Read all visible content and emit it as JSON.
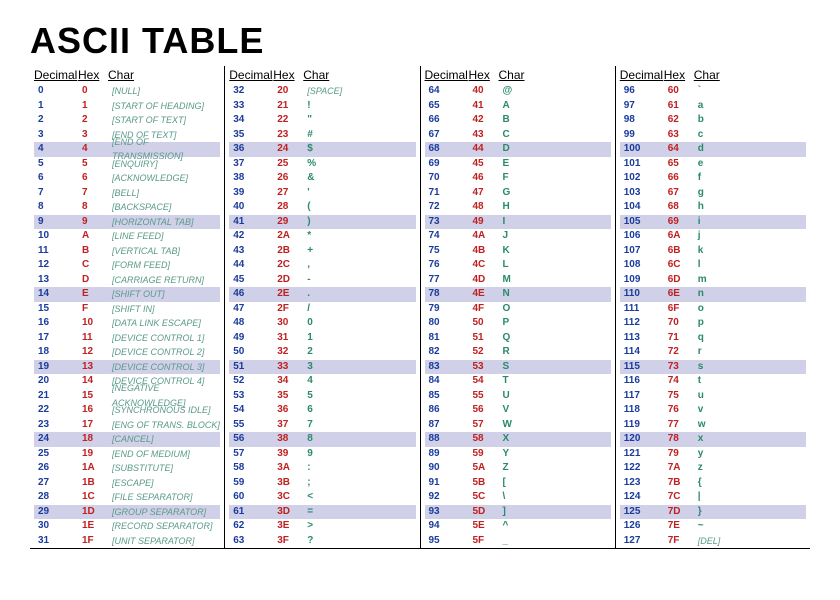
{
  "title": "ASCII TABLE",
  "headers": {
    "decimal": "Decimal",
    "hex": "Hex",
    "char": "Char"
  },
  "colors": {
    "decimal": "#1a3c9c",
    "hex": "#c02020",
    "char": "#2a8a6a",
    "ctrl": "#5a9a8a",
    "stripe": "#d0d0e8",
    "background": "#ffffff",
    "title": "#000000"
  },
  "typography": {
    "title_fontsize": 36,
    "title_weight": 900,
    "header_fontsize": 12,
    "row_fontsize": 10,
    "ctrl_fontsize": 9
  },
  "stripe_rows": [
    4,
    9,
    14,
    19,
    24,
    29
  ],
  "columns": [
    [
      {
        "d": "0",
        "h": "0",
        "c": "[NULL]",
        "ctrl": true
      },
      {
        "d": "1",
        "h": "1",
        "c": "[START OF HEADING]",
        "ctrl": true
      },
      {
        "d": "2",
        "h": "2",
        "c": "[START OF TEXT]",
        "ctrl": true
      },
      {
        "d": "3",
        "h": "3",
        "c": "[END OF TEXT]",
        "ctrl": true
      },
      {
        "d": "4",
        "h": "4",
        "c": "[END OF TRANSMISSION]",
        "ctrl": true
      },
      {
        "d": "5",
        "h": "5",
        "c": "[ENQUIRY]",
        "ctrl": true
      },
      {
        "d": "6",
        "h": "6",
        "c": "[ACKNOWLEDGE]",
        "ctrl": true
      },
      {
        "d": "7",
        "h": "7",
        "c": "[BELL]",
        "ctrl": true
      },
      {
        "d": "8",
        "h": "8",
        "c": "[BACKSPACE]",
        "ctrl": true
      },
      {
        "d": "9",
        "h": "9",
        "c": "[HORIZONTAL TAB]",
        "ctrl": true
      },
      {
        "d": "10",
        "h": "A",
        "c": "[LINE FEED]",
        "ctrl": true
      },
      {
        "d": "11",
        "h": "B",
        "c": "[VERTICAL TAB]",
        "ctrl": true
      },
      {
        "d": "12",
        "h": "C",
        "c": "[FORM FEED]",
        "ctrl": true
      },
      {
        "d": "13",
        "h": "D",
        "c": "[CARRIAGE RETURN]",
        "ctrl": true
      },
      {
        "d": "14",
        "h": "E",
        "c": "[SHIFT OUT]",
        "ctrl": true
      },
      {
        "d": "15",
        "h": "F",
        "c": "[SHIFT IN]",
        "ctrl": true
      },
      {
        "d": "16",
        "h": "10",
        "c": "[DATA LINK ESCAPE]",
        "ctrl": true
      },
      {
        "d": "17",
        "h": "11",
        "c": "[DEVICE CONTROL 1]",
        "ctrl": true
      },
      {
        "d": "18",
        "h": "12",
        "c": "[DEVICE CONTROL 2]",
        "ctrl": true
      },
      {
        "d": "19",
        "h": "13",
        "c": "[DEVICE CONTROL 3]",
        "ctrl": true
      },
      {
        "d": "20",
        "h": "14",
        "c": "[DEVICE CONTROL 4]",
        "ctrl": true
      },
      {
        "d": "21",
        "h": "15",
        "c": "[NEGATIVE ACKNOWLEDGE]",
        "ctrl": true
      },
      {
        "d": "22",
        "h": "16",
        "c": "[SYNCHRONOUS IDLE]",
        "ctrl": true
      },
      {
        "d": "23",
        "h": "17",
        "c": "[ENG OF TRANS. BLOCK]",
        "ctrl": true
      },
      {
        "d": "24",
        "h": "18",
        "c": "[CANCEL]",
        "ctrl": true
      },
      {
        "d": "25",
        "h": "19",
        "c": "[END OF MEDIUM]",
        "ctrl": true
      },
      {
        "d": "26",
        "h": "1A",
        "c": "[SUBSTITUTE]",
        "ctrl": true
      },
      {
        "d": "27",
        "h": "1B",
        "c": "[ESCAPE]",
        "ctrl": true
      },
      {
        "d": "28",
        "h": "1C",
        "c": "[FILE SEPARATOR]",
        "ctrl": true
      },
      {
        "d": "29",
        "h": "1D",
        "c": "[GROUP SEPARATOR]",
        "ctrl": true
      },
      {
        "d": "30",
        "h": "1E",
        "c": "[RECORD SEPARATOR]",
        "ctrl": true
      },
      {
        "d": "31",
        "h": "1F",
        "c": "[UNIT SEPARATOR]",
        "ctrl": true
      }
    ],
    [
      {
        "d": "32",
        "h": "20",
        "c": "[SPACE]",
        "ctrl": true
      },
      {
        "d": "33",
        "h": "21",
        "c": "!",
        "ctrl": false
      },
      {
        "d": "34",
        "h": "22",
        "c": "\"",
        "ctrl": false
      },
      {
        "d": "35",
        "h": "23",
        "c": "#",
        "ctrl": false
      },
      {
        "d": "36",
        "h": "24",
        "c": "$",
        "ctrl": false
      },
      {
        "d": "37",
        "h": "25",
        "c": "%",
        "ctrl": false
      },
      {
        "d": "38",
        "h": "26",
        "c": "&",
        "ctrl": false
      },
      {
        "d": "39",
        "h": "27",
        "c": "'",
        "ctrl": false
      },
      {
        "d": "40",
        "h": "28",
        "c": "(",
        "ctrl": false
      },
      {
        "d": "41",
        "h": "29",
        "c": ")",
        "ctrl": false
      },
      {
        "d": "42",
        "h": "2A",
        "c": "*",
        "ctrl": false
      },
      {
        "d": "43",
        "h": "2B",
        "c": "+",
        "ctrl": false
      },
      {
        "d": "44",
        "h": "2C",
        "c": ",",
        "ctrl": false
      },
      {
        "d": "45",
        "h": "2D",
        "c": "-",
        "ctrl": false
      },
      {
        "d": "46",
        "h": "2E",
        "c": ".",
        "ctrl": false
      },
      {
        "d": "47",
        "h": "2F",
        "c": "/",
        "ctrl": false
      },
      {
        "d": "48",
        "h": "30",
        "c": "0",
        "ctrl": false
      },
      {
        "d": "49",
        "h": "31",
        "c": "1",
        "ctrl": false
      },
      {
        "d": "50",
        "h": "32",
        "c": "2",
        "ctrl": false
      },
      {
        "d": "51",
        "h": "33",
        "c": "3",
        "ctrl": false
      },
      {
        "d": "52",
        "h": "34",
        "c": "4",
        "ctrl": false
      },
      {
        "d": "53",
        "h": "35",
        "c": "5",
        "ctrl": false
      },
      {
        "d": "54",
        "h": "36",
        "c": "6",
        "ctrl": false
      },
      {
        "d": "55",
        "h": "37",
        "c": "7",
        "ctrl": false
      },
      {
        "d": "56",
        "h": "38",
        "c": "8",
        "ctrl": false
      },
      {
        "d": "57",
        "h": "39",
        "c": "9",
        "ctrl": false
      },
      {
        "d": "58",
        "h": "3A",
        "c": ":",
        "ctrl": false
      },
      {
        "d": "59",
        "h": "3B",
        "c": ";",
        "ctrl": false
      },
      {
        "d": "60",
        "h": "3C",
        "c": "<",
        "ctrl": false
      },
      {
        "d": "61",
        "h": "3D",
        "c": "=",
        "ctrl": false
      },
      {
        "d": "62",
        "h": "3E",
        "c": ">",
        "ctrl": false
      },
      {
        "d": "63",
        "h": "3F",
        "c": "?",
        "ctrl": false
      }
    ],
    [
      {
        "d": "64",
        "h": "40",
        "c": "@",
        "ctrl": false
      },
      {
        "d": "65",
        "h": "41",
        "c": "A",
        "ctrl": false
      },
      {
        "d": "66",
        "h": "42",
        "c": "B",
        "ctrl": false
      },
      {
        "d": "67",
        "h": "43",
        "c": "C",
        "ctrl": false
      },
      {
        "d": "68",
        "h": "44",
        "c": "D",
        "ctrl": false
      },
      {
        "d": "69",
        "h": "45",
        "c": "E",
        "ctrl": false
      },
      {
        "d": "70",
        "h": "46",
        "c": "F",
        "ctrl": false
      },
      {
        "d": "71",
        "h": "47",
        "c": "G",
        "ctrl": false
      },
      {
        "d": "72",
        "h": "48",
        "c": "H",
        "ctrl": false
      },
      {
        "d": "73",
        "h": "49",
        "c": "I",
        "ctrl": false
      },
      {
        "d": "74",
        "h": "4A",
        "c": "J",
        "ctrl": false
      },
      {
        "d": "75",
        "h": "4B",
        "c": "K",
        "ctrl": false
      },
      {
        "d": "76",
        "h": "4C",
        "c": "L",
        "ctrl": false
      },
      {
        "d": "77",
        "h": "4D",
        "c": "M",
        "ctrl": false
      },
      {
        "d": "78",
        "h": "4E",
        "c": "N",
        "ctrl": false
      },
      {
        "d": "79",
        "h": "4F",
        "c": "O",
        "ctrl": false
      },
      {
        "d": "80",
        "h": "50",
        "c": "P",
        "ctrl": false
      },
      {
        "d": "81",
        "h": "51",
        "c": "Q",
        "ctrl": false
      },
      {
        "d": "82",
        "h": "52",
        "c": "R",
        "ctrl": false
      },
      {
        "d": "83",
        "h": "53",
        "c": "S",
        "ctrl": false
      },
      {
        "d": "84",
        "h": "54",
        "c": "T",
        "ctrl": false
      },
      {
        "d": "85",
        "h": "55",
        "c": "U",
        "ctrl": false
      },
      {
        "d": "86",
        "h": "56",
        "c": "V",
        "ctrl": false
      },
      {
        "d": "87",
        "h": "57",
        "c": "W",
        "ctrl": false
      },
      {
        "d": "88",
        "h": "58",
        "c": "X",
        "ctrl": false
      },
      {
        "d": "89",
        "h": "59",
        "c": "Y",
        "ctrl": false
      },
      {
        "d": "90",
        "h": "5A",
        "c": "Z",
        "ctrl": false
      },
      {
        "d": "91",
        "h": "5B",
        "c": "[",
        "ctrl": false
      },
      {
        "d": "92",
        "h": "5C",
        "c": "\\",
        "ctrl": false
      },
      {
        "d": "93",
        "h": "5D",
        "c": "]",
        "ctrl": false
      },
      {
        "d": "94",
        "h": "5E",
        "c": "^",
        "ctrl": false
      },
      {
        "d": "95",
        "h": "5F",
        "c": "_",
        "ctrl": false
      }
    ],
    [
      {
        "d": "96",
        "h": "60",
        "c": "`",
        "ctrl": false
      },
      {
        "d": "97",
        "h": "61",
        "c": "a",
        "ctrl": false
      },
      {
        "d": "98",
        "h": "62",
        "c": "b",
        "ctrl": false
      },
      {
        "d": "99",
        "h": "63",
        "c": "c",
        "ctrl": false
      },
      {
        "d": "100",
        "h": "64",
        "c": "d",
        "ctrl": false
      },
      {
        "d": "101",
        "h": "65",
        "c": "e",
        "ctrl": false
      },
      {
        "d": "102",
        "h": "66",
        "c": "f",
        "ctrl": false
      },
      {
        "d": "103",
        "h": "67",
        "c": "g",
        "ctrl": false
      },
      {
        "d": "104",
        "h": "68",
        "c": "h",
        "ctrl": false
      },
      {
        "d": "105",
        "h": "69",
        "c": "i",
        "ctrl": false
      },
      {
        "d": "106",
        "h": "6A",
        "c": "j",
        "ctrl": false
      },
      {
        "d": "107",
        "h": "6B",
        "c": "k",
        "ctrl": false
      },
      {
        "d": "108",
        "h": "6C",
        "c": "l",
        "ctrl": false
      },
      {
        "d": "109",
        "h": "6D",
        "c": "m",
        "ctrl": false
      },
      {
        "d": "110",
        "h": "6E",
        "c": "n",
        "ctrl": false
      },
      {
        "d": "111",
        "h": "6F",
        "c": "o",
        "ctrl": false
      },
      {
        "d": "112",
        "h": "70",
        "c": "p",
        "ctrl": false
      },
      {
        "d": "113",
        "h": "71",
        "c": "q",
        "ctrl": false
      },
      {
        "d": "114",
        "h": "72",
        "c": "r",
        "ctrl": false
      },
      {
        "d": "115",
        "h": "73",
        "c": "s",
        "ctrl": false
      },
      {
        "d": "116",
        "h": "74",
        "c": "t",
        "ctrl": false
      },
      {
        "d": "117",
        "h": "75",
        "c": "u",
        "ctrl": false
      },
      {
        "d": "118",
        "h": "76",
        "c": "v",
        "ctrl": false
      },
      {
        "d": "119",
        "h": "77",
        "c": "w",
        "ctrl": false
      },
      {
        "d": "120",
        "h": "78",
        "c": "x",
        "ctrl": false
      },
      {
        "d": "121",
        "h": "79",
        "c": "y",
        "ctrl": false
      },
      {
        "d": "122",
        "h": "7A",
        "c": "z",
        "ctrl": false
      },
      {
        "d": "123",
        "h": "7B",
        "c": "{",
        "ctrl": false
      },
      {
        "d": "124",
        "h": "7C",
        "c": "|",
        "ctrl": false
      },
      {
        "d": "125",
        "h": "7D",
        "c": "}",
        "ctrl": false
      },
      {
        "d": "126",
        "h": "7E",
        "c": "~",
        "ctrl": false
      },
      {
        "d": "127",
        "h": "7F",
        "c": "[DEL]",
        "ctrl": true
      }
    ]
  ]
}
